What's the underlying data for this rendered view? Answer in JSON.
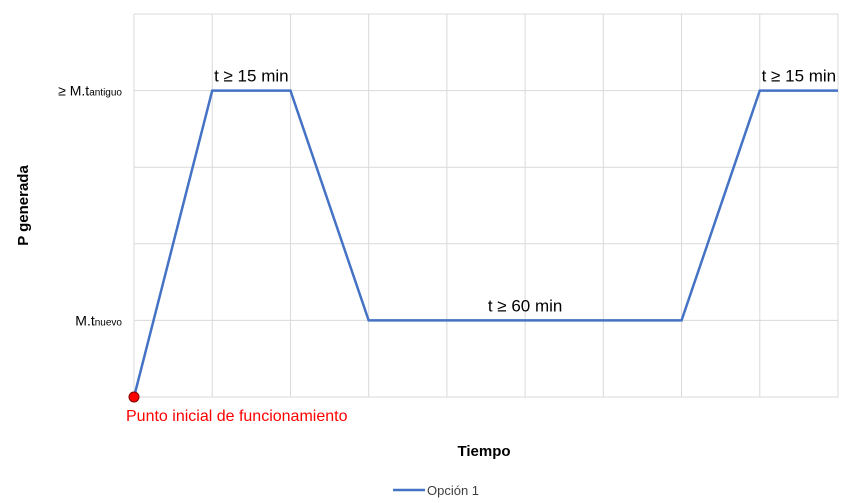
{
  "chart_data": {
    "type": "line",
    "xlabel": "Tiempo",
    "ylabel": "P generada",
    "x": [
      0,
      1,
      2,
      3,
      7,
      8,
      9
    ],
    "series": [
      {
        "name": "Opción 1",
        "values": [
          0,
          4,
          4,
          1,
          1,
          4,
          4
        ],
        "color": "#4472c4"
      }
    ],
    "xlim": [
      0,
      9
    ],
    "ylim": [
      0,
      5
    ],
    "y_tick_labels": [
      {
        "value": 4,
        "main": "≥ M.t",
        "sub": "antiguo"
      },
      {
        "value": 1,
        "main": "M.t",
        "sub": "nuevo"
      }
    ],
    "annotations": [
      {
        "text": "t ≥ 15 min",
        "x": 1.5,
        "y": 4
      },
      {
        "text": "t ≥ 60 min",
        "x": 5,
        "y": 1
      },
      {
        "text": "t ≥ 15 min",
        "x": 8.5,
        "y": 4
      }
    ],
    "start_point": {
      "x": 0,
      "y": 0,
      "label": "Punto inicial de funcionamiento",
      "color": "#ff0000"
    },
    "grid": true,
    "legend_position": "bottom"
  }
}
